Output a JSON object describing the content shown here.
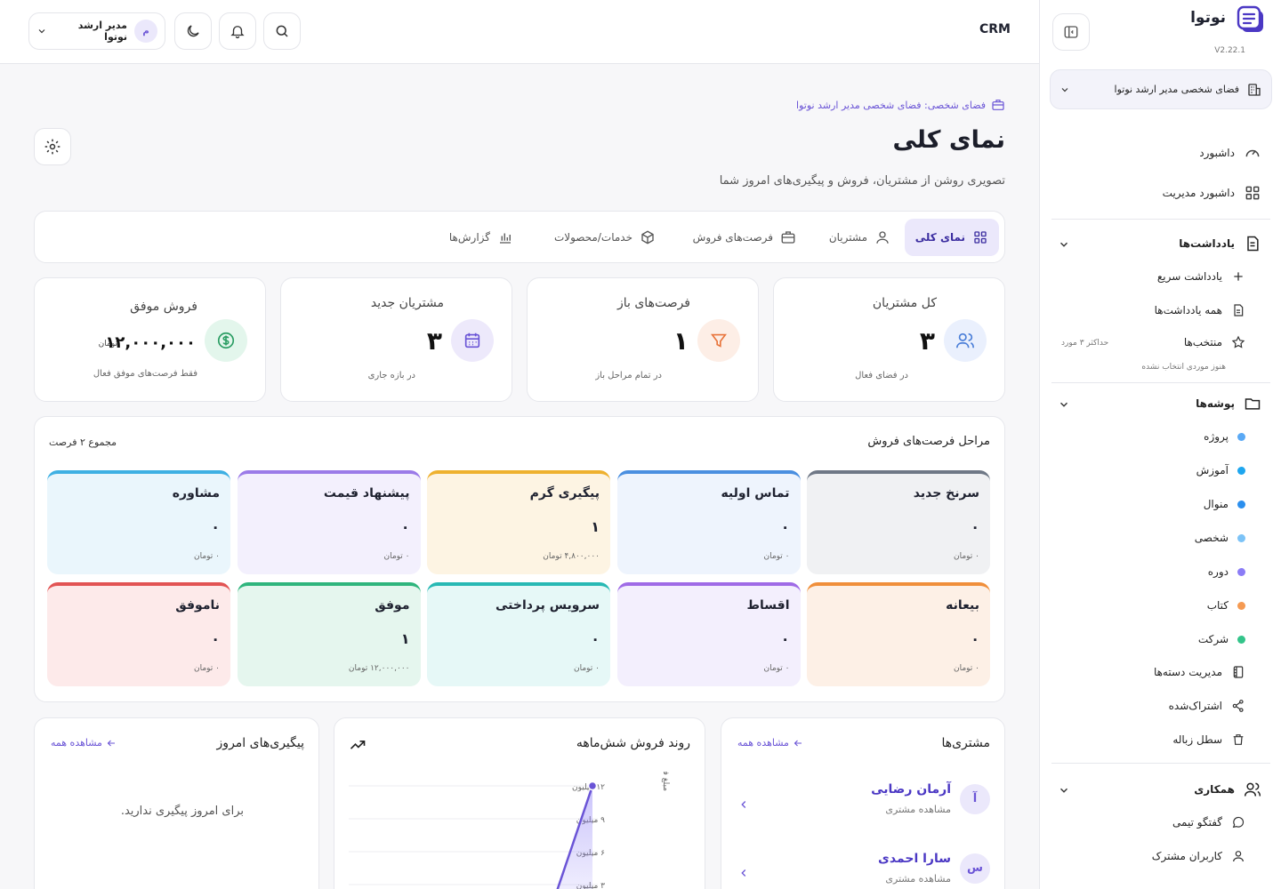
{
  "sidebar": {
    "brand": "نوتوا",
    "version": "V2.22.1",
    "workspace": "فضای شخصی مدیر ارشد نوتوا",
    "nav": [
      {
        "label": "داشبورد"
      },
      {
        "label": "داشبورد مدیریت"
      }
    ],
    "notes": {
      "title": "یادداشت‌ها",
      "quick": "یادداشت سریع",
      "all": "همه یادداشت‌ها",
      "favorites": "منتخب‌ها",
      "fav_limit": "حداکثر ۳ مورد",
      "fav_empty": "هنوز موردی انتخاب نشده"
    },
    "folders": {
      "title": "پوشه‌ها",
      "items": [
        {
          "label": "پروژه",
          "color": "#5aa9f5"
        },
        {
          "label": "آموزش",
          "color": "#1ea6ef"
        },
        {
          "label": "منوال",
          "color": "#2b8fee"
        },
        {
          "label": "شخصی",
          "color": "#7cc3f7"
        },
        {
          "label": "دوره",
          "color": "#8b7cf6"
        },
        {
          "label": "کتاب",
          "color": "#f59a52"
        },
        {
          "label": "شرکت",
          "color": "#33c48a"
        }
      ],
      "manage": "مدیریت دسته‌ها",
      "shared": "اشتراک‌شده",
      "trash": "سطل زباله"
    },
    "collab": {
      "title": "همکاری",
      "chat": "گفتگو تیمی",
      "users": "کاربران مشترک"
    }
  },
  "header": {
    "app": "CRM",
    "user": "مدیر ارشد نوتوا",
    "user_initial": "م"
  },
  "main": {
    "breadcrumb": "فضای شخصی: فضای شخصی مدیر ارشد نوتوا",
    "title": "نمای کلی",
    "subtitle": "تصویری روشن از مشتریان، فروش و پیگیری‌های امروز شما",
    "tabs": [
      {
        "label": "نمای کلی"
      },
      {
        "label": "مشتریان"
      },
      {
        "label": "فرصت‌های فروش"
      },
      {
        "label": "خدمات/محصولات"
      },
      {
        "label": "گزارش‌ها"
      }
    ],
    "stats": [
      {
        "label": "کل مشتریان",
        "value": "۳",
        "caption": "در فضای فعال",
        "color": "#eaf0fd"
      },
      {
        "label": "فرصت‌های باز",
        "value": "۱",
        "caption": "در تمام مراحل باز",
        "color": "#fdeee6"
      },
      {
        "label": "مشتریان جدید",
        "value": "۳",
        "caption": "در بازه جاری",
        "color": "#ede9fb"
      },
      {
        "label": "فروش موفق",
        "value": "۱۲,۰۰۰,۰۰۰",
        "unit": "تومان",
        "caption": "فقط فرصت‌های موفق فعال",
        "color": "#e3f6ec"
      }
    ],
    "pipeline": {
      "title": "مراحل فرصت‌های فروش",
      "total": "مجموع ۲ فرصت",
      "stages": [
        {
          "name": "سرنخ جدید",
          "count": "۰",
          "amount": "۰ تومان",
          "bg": "#f0f1f3",
          "top": "#6f7886"
        },
        {
          "name": "تماس اولیه",
          "count": "۰",
          "amount": "۰ تومان",
          "bg": "#eef4fd",
          "top": "#4a8fe0"
        },
        {
          "name": "پیگیری گرم",
          "count": "۱",
          "amount": "۴,۸۰۰,۰۰۰ تومان",
          "bg": "#fdf4e3",
          "top": "#eeb12f"
        },
        {
          "name": "پیشنهاد قیمت",
          "count": "۰",
          "amount": "۰ تومان",
          "bg": "#f3f0fd",
          "top": "#9b7be8"
        },
        {
          "name": "مشاوره",
          "count": "۰",
          "amount": "۰ تومان",
          "bg": "#eaf6fc",
          "top": "#3eb0e3"
        },
        {
          "name": "بیعانه",
          "count": "۰",
          "amount": "۰ تومان",
          "bg": "#fdf0e6",
          "top": "#f08f3b"
        },
        {
          "name": "اقساط",
          "count": "۰",
          "amount": "۰ تومان",
          "bg": "#f3effd",
          "top": "#9f6be6"
        },
        {
          "name": "سرویس پرداختی",
          "count": "۰",
          "amount": "۰ تومان",
          "bg": "#e6f8f7",
          "top": "#28b9b4"
        },
        {
          "name": "موفق",
          "count": "۱",
          "amount": "۱۲,۰۰۰,۰۰۰ تومان",
          "bg": "#e5f6ee",
          "top": "#2fb57d"
        },
        {
          "name": "ناموفق",
          "count": "۰",
          "amount": "۰ تومان",
          "bg": "#fdeaea",
          "top": "#e25454"
        }
      ]
    },
    "customers": {
      "title": "مشتری‌ها",
      "view_all": "مشاهده همه",
      "items": [
        {
          "initial": "آ",
          "name": "آرمان رضایی",
          "action": "مشاهده مشتری"
        },
        {
          "initial": "س",
          "name": "سارا احمدی",
          "action": "مشاهده مشتری"
        }
      ]
    },
    "sales_trend": {
      "title": "روند فروش شش‌ماهه",
      "ylabel": "مبلغ فروش (توما",
      "ticks": [
        "۱۲ میلیون",
        "۹ میلیون",
        "۶ میلیون",
        "۳ میلیون"
      ]
    },
    "followups": {
      "title": "پیگیری‌های امروز",
      "view_all": "مشاهده همه",
      "empty": "برای امروز پیگیری ندارید."
    }
  },
  "chart_data": {
    "type": "area",
    "title": "روند فروش شش‌ماهه",
    "ylabel": "مبلغ فروش (توما",
    "yticks": [
      12,
      9,
      6,
      3
    ],
    "unit": "میلیون",
    "ylim": [
      0,
      12
    ],
    "points": [
      {
        "y": 0
      },
      {
        "y": 12
      }
    ]
  }
}
